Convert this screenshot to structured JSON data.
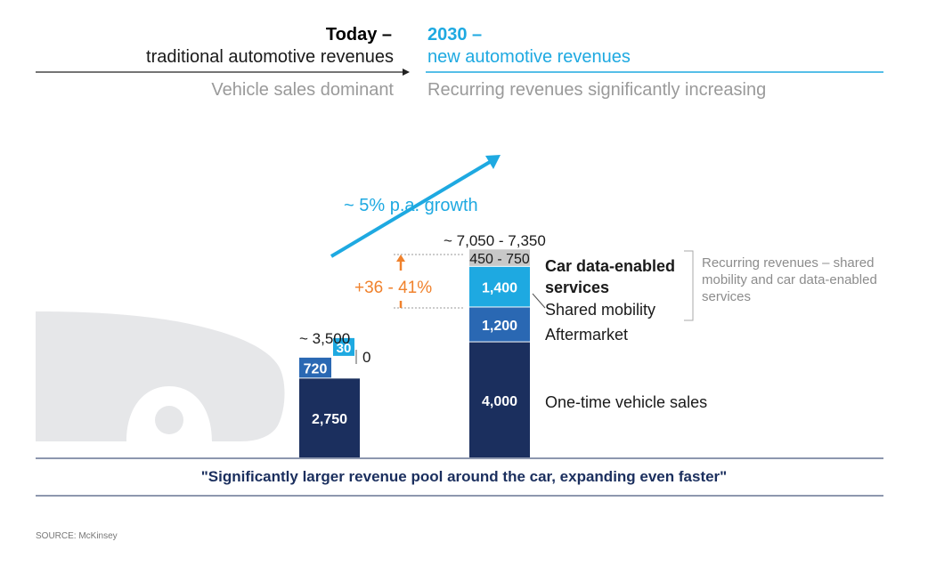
{
  "header": {
    "today_title": "Today –",
    "today_sub": "traditional automotive revenues",
    "today_note": "Vehicle sales dominant",
    "future_title": "2030 –",
    "future_sub": "new automotive revenues",
    "future_note": "Recurring revenues significantly increasing"
  },
  "chart_data": {
    "type": "bar",
    "stacked": true,
    "categories": [
      "Today",
      "2030"
    ],
    "series": [
      {
        "name": "One-time vehicle sales",
        "values": [
          2750,
          4000
        ],
        "labels": [
          "2,750",
          "4,000"
        ],
        "color": "#1b2f5e"
      },
      {
        "name": "Aftermarket",
        "values": [
          720,
          1200
        ],
        "labels": [
          "720",
          "1,200"
        ],
        "color": "#2a68b3"
      },
      {
        "name": "Shared mobility",
        "values": [
          30,
          1400
        ],
        "labels": [
          "30",
          "1,400"
        ],
        "color": "#1ea9e1"
      },
      {
        "name": "Car data-enabled services",
        "values": [
          0,
          600
        ],
        "labels": [
          "0",
          "450 - 750"
        ],
        "color": "#c8c8c8"
      }
    ],
    "totals": [
      "~ 3,500",
      "~ 7,050 - 7,350"
    ],
    "growth_label": "~ 5% p.a. growth",
    "increase_label": "+36 - 41%",
    "recurring_label": "Recurring revenues – shared mobility and car data-enabled services",
    "legend_labels": {
      "data": "Car data-enabled services",
      "shared": "Shared mobility",
      "after": "Aftermarket",
      "onetime": "One-time vehicle sales"
    },
    "colors": {
      "dark": "#1b2f5e",
      "mid": "#2a68b3",
      "light": "#1ea9e1",
      "grey": "#c8c8c8",
      "orange": "#f0822d"
    }
  },
  "footer": {
    "quote": "\"Significantly larger revenue pool around the car, expanding even faster\"",
    "source": "SOURCE: McKinsey"
  }
}
